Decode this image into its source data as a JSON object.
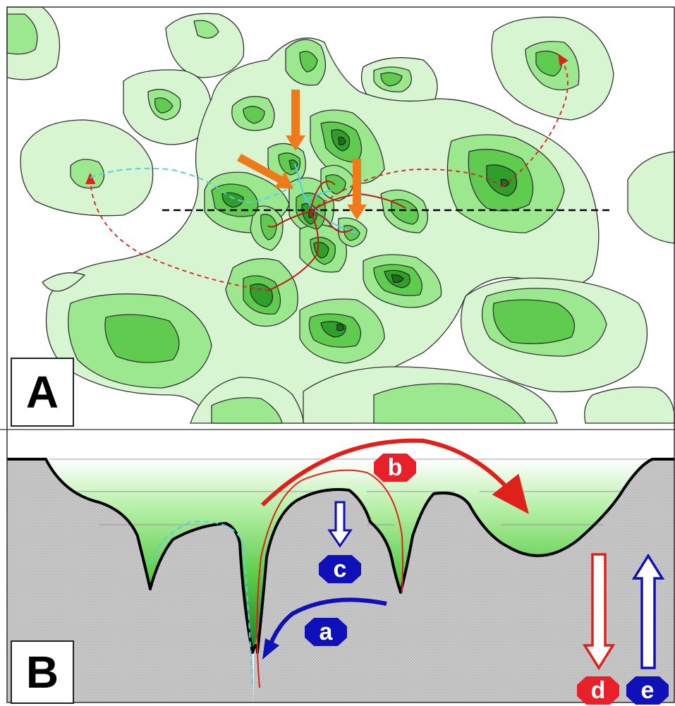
{
  "panels": {
    "a": {
      "label": "A"
    },
    "b": {
      "label": "B"
    }
  },
  "badges": {
    "a": "a",
    "b": "b",
    "c": "c",
    "d": "d",
    "e": "e"
  },
  "colors": {
    "green_lightest": "#d6f5d0",
    "green_light": "#9be88e",
    "green_mid": "#5fcc50",
    "green_dark": "#2f9e2a",
    "green_darkest": "#1b6e1c",
    "substrate_gray": "#c8c8c8",
    "arrow_red": "#e0201a",
    "arrow_blue": "#1010b8",
    "arrow_orange": "#f07a1a",
    "path_cyan": "#52d0ea"
  }
}
